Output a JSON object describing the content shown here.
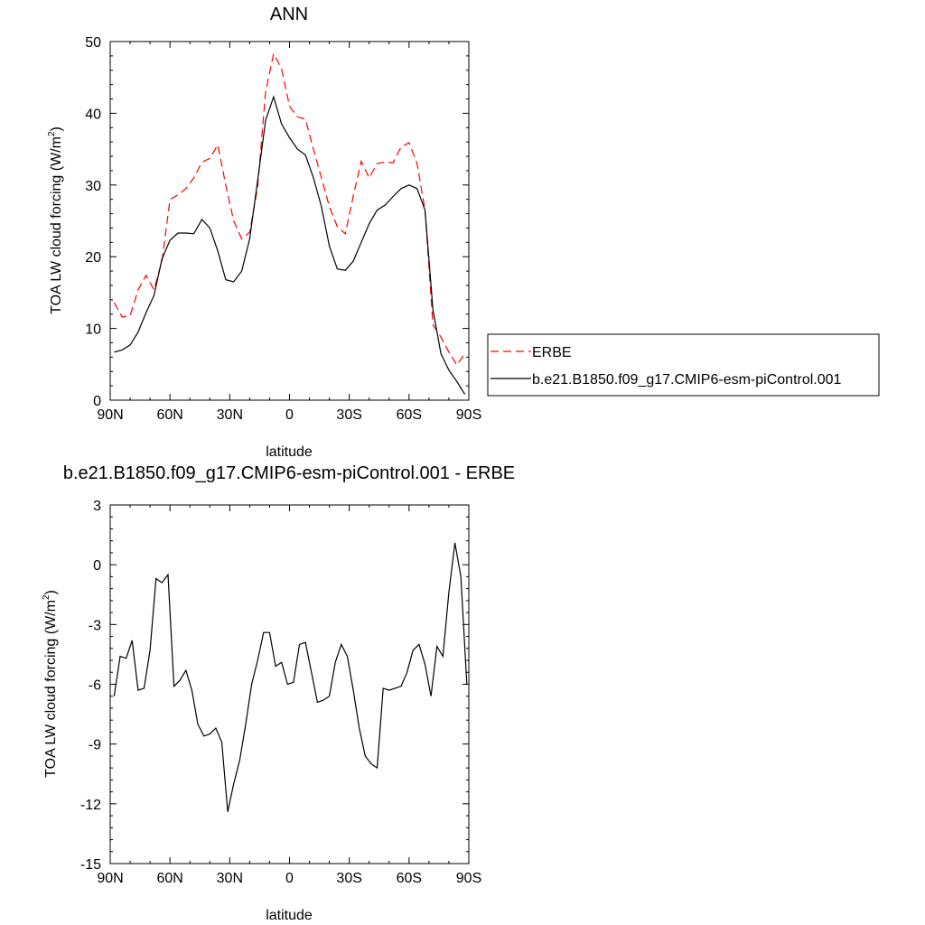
{
  "chart_data": [
    {
      "type": "line",
      "title": "ANN",
      "xlabel": "latitude",
      "ylabel_main": "TOA LW cloud forcing (W/m",
      "ylabel_sup": "2",
      "ylabel_close": ")",
      "xlim": [
        90,
        -90
      ],
      "ylim": [
        0,
        50
      ],
      "xticks": [
        {
          "value": 90,
          "label": "90N"
        },
        {
          "value": 60,
          "label": "60N"
        },
        {
          "value": 30,
          "label": "30N"
        },
        {
          "value": 0,
          "label": "0"
        },
        {
          "value": -30,
          "label": "30S"
        },
        {
          "value": -60,
          "label": "60S"
        },
        {
          "value": -90,
          "label": "90S"
        }
      ],
      "yticks": [
        0,
        10,
        20,
        30,
        40,
        50
      ],
      "x": [
        88,
        84,
        80,
        76,
        72,
        68,
        64,
        60,
        56,
        52,
        48,
        44,
        40,
        36,
        32,
        28,
        24,
        20,
        16,
        12,
        8,
        4,
        0,
        -4,
        -8,
        -12,
        -16,
        -20,
        -24,
        -28,
        -32,
        -36,
        -40,
        -44,
        -48,
        -52,
        -56,
        -60,
        -64,
        -68,
        -72,
        -76,
        -80,
        -84,
        -88
      ],
      "series": [
        {
          "name": "ERBE",
          "color": "#ff0000",
          "dash": true,
          "values": [
            13.6,
            11.6,
            11.8,
            15.4,
            17.4,
            15.4,
            19.4,
            28.0,
            28.6,
            29.5,
            31.0,
            33.2,
            33.7,
            35.6,
            30.0,
            25.0,
            22.5,
            23.4,
            29.7,
            43.0,
            48.3,
            46.2,
            41.0,
            39.5,
            39.2,
            35.0,
            31.0,
            27.0,
            24.2,
            23.2,
            28.5,
            33.3,
            31.0,
            33.0,
            33.2,
            33.1,
            35.3,
            35.9,
            33.0,
            26.5,
            10.5,
            8.8,
            6.7,
            4.9,
            6.5
          ]
        },
        {
          "name": "b.e21.B1850.f09_g17.CMIP6-esm-piControl.001",
          "color": "#000000",
          "dash": false,
          "values": [
            6.7,
            7.0,
            7.7,
            9.5,
            12.2,
            14.6,
            19.7,
            22.3,
            23.3,
            23.3,
            23.2,
            25.2,
            24.0,
            20.8,
            16.8,
            16.5,
            18.0,
            22.5,
            30.6,
            39.0,
            42.3,
            38.5,
            36.6,
            35.0,
            34.2,
            31.0,
            27.0,
            21.5,
            18.3,
            18.1,
            19.4,
            22.0,
            24.6,
            26.5,
            27.2,
            28.4,
            29.5,
            30.0,
            29.5,
            26.5,
            12.6,
            6.5,
            4.2,
            2.6,
            0.8
          ]
        }
      ],
      "legend": "right"
    },
    {
      "type": "line",
      "title": "b.e21.B1850.f09_g17.CMIP6-esm-piControl.001 - ERBE",
      "xlabel": "latitude",
      "ylabel_main": "TOA LW cloud forcing (W/m",
      "ylabel_sup": "2",
      "ylabel_close": ")",
      "xlim": [
        90,
        -90
      ],
      "ylim": [
        -15,
        3
      ],
      "xticks": [
        {
          "value": 90,
          "label": "90N"
        },
        {
          "value": 60,
          "label": "60N"
        },
        {
          "value": 30,
          "label": "30N"
        },
        {
          "value": 0,
          "label": "0"
        },
        {
          "value": -30,
          "label": "30S"
        },
        {
          "value": -60,
          "label": "60S"
        },
        {
          "value": -90,
          "label": "90S"
        }
      ],
      "yticks": [
        -15,
        -12,
        -9,
        -6,
        -3,
        0,
        3
      ],
      "x": [
        88,
        85,
        82,
        79,
        76,
        73,
        70,
        67,
        64,
        61,
        58,
        55,
        52,
        49,
        46,
        43,
        40,
        37,
        34,
        31,
        28,
        25,
        22,
        19,
        16,
        13,
        10,
        7,
        4,
        1,
        -2,
        -5,
        -8,
        -11,
        -14,
        -17,
        -20,
        -23,
        -26,
        -29,
        -32,
        -35,
        -38,
        -41,
        -44,
        -47,
        -50,
        -53,
        -56,
        -59,
        -62,
        -65,
        -68,
        -71,
        -74,
        -77,
        -80,
        -83,
        -86,
        -89
      ],
      "series": [
        {
          "name": "",
          "color": "#000000",
          "dash": false,
          "values": [
            -6.6,
            -4.6,
            -4.7,
            -3.8,
            -6.3,
            -6.2,
            -4.3,
            -0.7,
            -0.9,
            -0.5,
            -6.1,
            -5.8,
            -5.3,
            -6.3,
            -8.0,
            -8.6,
            -8.5,
            -8.2,
            -8.9,
            -12.4,
            -11.0,
            -9.8,
            -8.0,
            -6.0,
            -4.8,
            -3.4,
            -3.4,
            -5.1,
            -4.9,
            -6.0,
            -5.9,
            -4.0,
            -3.9,
            -5.4,
            -6.9,
            -6.8,
            -6.6,
            -4.9,
            -4.0,
            -4.6,
            -6.3,
            -8.2,
            -9.6,
            -10.0,
            -10.2,
            -6.2,
            -6.3,
            -6.2,
            -6.1,
            -5.4,
            -4.3,
            -4.0,
            -5.0,
            -6.6,
            -4.1,
            -4.6,
            -1.4,
            1.1,
            -0.6,
            -6.0
          ]
        }
      ]
    }
  ]
}
